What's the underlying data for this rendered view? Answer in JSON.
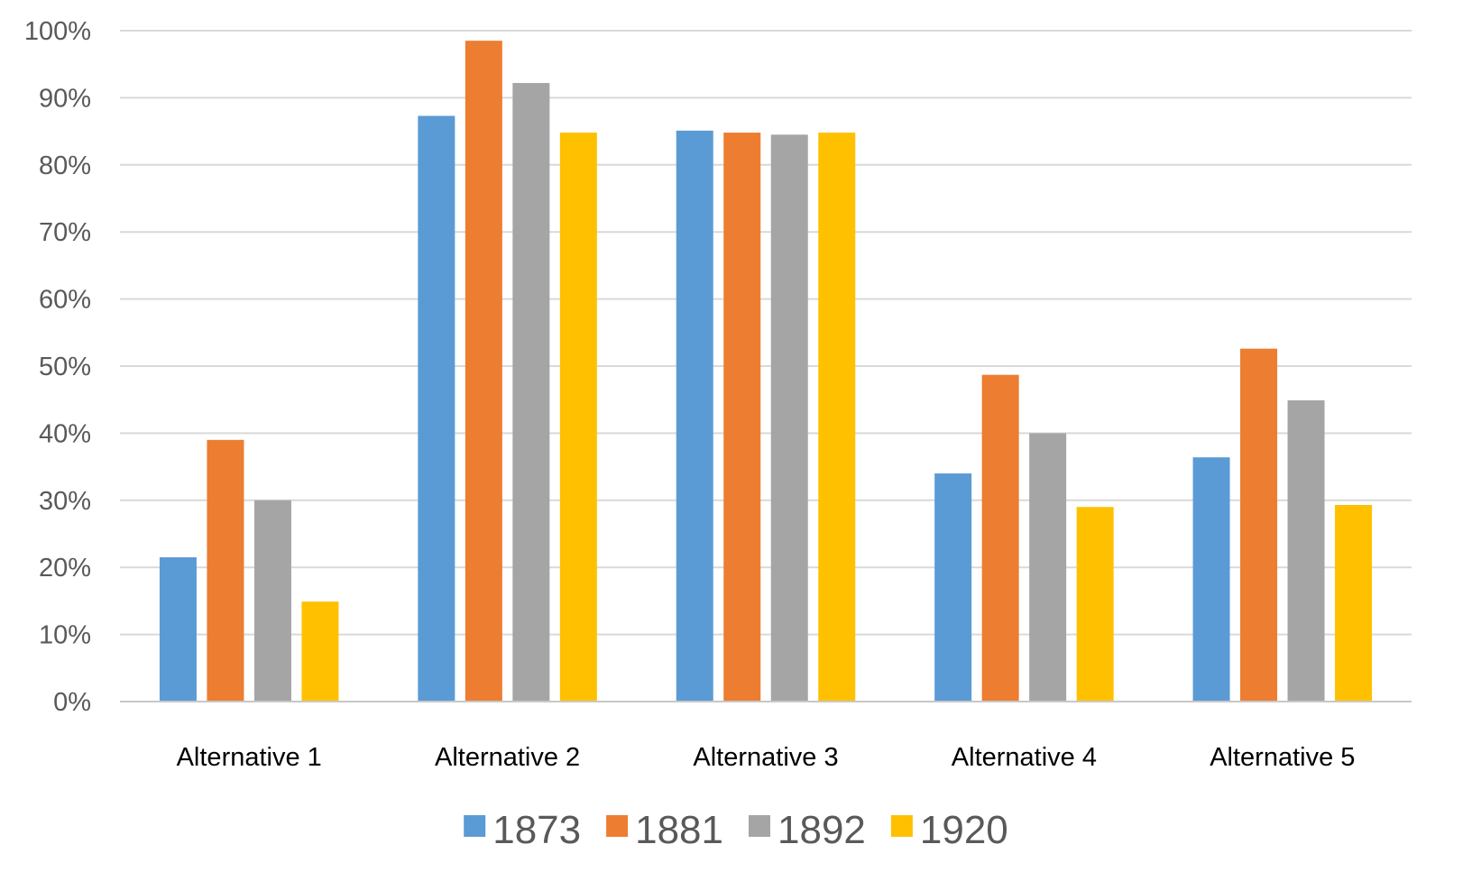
{
  "chart_data": {
    "type": "bar",
    "title": "",
    "xlabel": "",
    "ylabel": "",
    "categories": [
      "Alternative 1",
      "Alternative 2",
      "Alternative 3",
      "Alternative 4",
      "Alternative 5"
    ],
    "series": [
      {
        "name": "1873",
        "color": "#5B9BD5",
        "values": [
          21.5,
          87.3,
          85.1,
          34.0,
          36.4
        ]
      },
      {
        "name": "1881",
        "color": "#ED7D31",
        "values": [
          39.0,
          98.5,
          84.8,
          48.7,
          52.6
        ]
      },
      {
        "name": "1892",
        "color": "#A5A5A5",
        "values": [
          30.0,
          92.2,
          84.5,
          40.0,
          44.9
        ]
      },
      {
        "name": "1920",
        "color": "#FFC000",
        "values": [
          14.9,
          84.8,
          84.8,
          29.0,
          29.3
        ]
      }
    ],
    "ylim": [
      0,
      100
    ],
    "y_ticks": [
      0,
      10,
      20,
      30,
      40,
      50,
      60,
      70,
      80,
      90,
      100
    ],
    "y_tick_labels": [
      "0%",
      "10%",
      "20%",
      "30%",
      "40%",
      "50%",
      "60%",
      "70%",
      "80%",
      "90%",
      "100%"
    ],
    "grid": true,
    "legend_position": "bottom"
  }
}
